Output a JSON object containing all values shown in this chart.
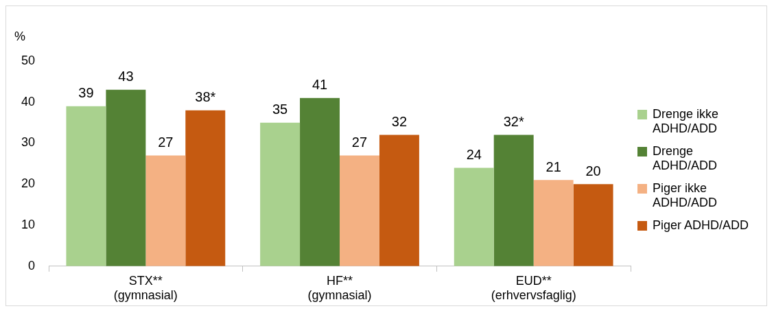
{
  "chart_data": {
    "type": "bar",
    "ylabel": "%",
    "categories": [
      "STX**\n(gymnasial)",
      "HF**\n(gymnasial)",
      "EUD**\n(erhvervsfaglig)"
    ],
    "series": [
      {
        "name": "Drenge ikke ADHD/ADD",
        "color": "#a9d18e",
        "values": [
          39,
          35,
          24
        ],
        "value_labels": [
          "39",
          "35",
          "24"
        ]
      },
      {
        "name": "Drenge ADHD/ADD",
        "color": "#548235",
        "values": [
          43,
          41,
          32
        ],
        "value_labels": [
          "43",
          "41",
          "32*"
        ]
      },
      {
        "name": "Piger ikke ADHD/ADD",
        "color": "#f4b183",
        "values": [
          27,
          27,
          21
        ],
        "value_labels": [
          "27",
          "27",
          "21"
        ]
      },
      {
        "name": "Piger ADHD/ADD",
        "color": "#c55a11",
        "values": [
          38,
          32,
          20
        ],
        "value_labels": [
          "38*",
          "32",
          "20"
        ]
      }
    ],
    "ylim": [
      0,
      50
    ],
    "yticks": [
      0,
      10,
      20,
      30,
      40,
      50
    ],
    "grid": false,
    "legend": "right"
  }
}
